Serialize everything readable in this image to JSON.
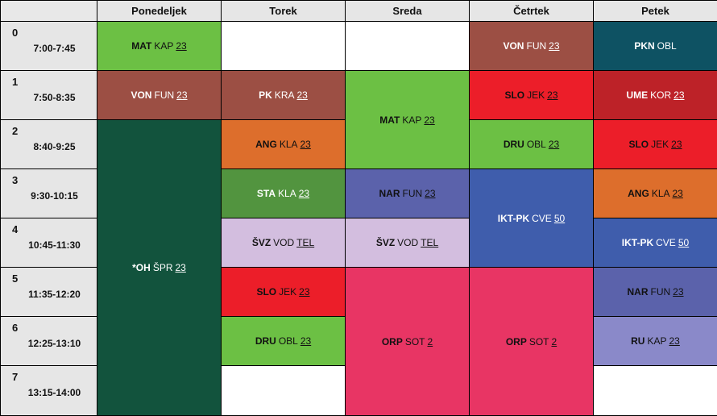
{
  "days": [
    "Ponedeljek",
    "Torek",
    "Sreda",
    "Četrtek",
    "Petek"
  ],
  "periods": [
    {
      "num": "0",
      "time": "7:00-7:45"
    },
    {
      "num": "1",
      "time": "7:50-8:35"
    },
    {
      "num": "2",
      "time": "8:40-9:25"
    },
    {
      "num": "3",
      "time": "9:30-10:15"
    },
    {
      "num": "4",
      "time": "10:45-11:30"
    },
    {
      "num": "5",
      "time": "11:35-12:20"
    },
    {
      "num": "6",
      "time": "12:25-13:10"
    },
    {
      "num": "7",
      "time": "13:15-14:00"
    }
  ],
  "lessons": [
    {
      "day": 0,
      "period": 0,
      "span": 1,
      "subject": "MAT",
      "teacher": "KAP",
      "room": "23",
      "color": "#6cc044",
      "text": "dark"
    },
    {
      "day": 0,
      "period": 1,
      "span": 1,
      "subject": "VON",
      "teacher": "FUN",
      "room": "23",
      "color": "#9c4f44",
      "text": "light"
    },
    {
      "day": 0,
      "period": 2,
      "span": 6,
      "subject": "*OH",
      "teacher": "ŠPR",
      "room": "23",
      "color": "#12533d",
      "text": "light"
    },
    {
      "day": 1,
      "period": 1,
      "span": 1,
      "subject": "PK",
      "teacher": "KRA",
      "room": "23",
      "color": "#9c4f44",
      "text": "light"
    },
    {
      "day": 1,
      "period": 2,
      "span": 1,
      "subject": "ANG",
      "teacher": "KLA",
      "room": "23",
      "color": "#dd6e2c",
      "text": "dark"
    },
    {
      "day": 1,
      "period": 3,
      "span": 1,
      "subject": "STA",
      "teacher": "KLA",
      "room": "23",
      "color": "#52943f",
      "text": "light"
    },
    {
      "day": 1,
      "period": 4,
      "span": 1,
      "subject": "ŠVZ",
      "teacher": "VOD",
      "room": "TEL",
      "color": "#d3bedf",
      "text": "dark"
    },
    {
      "day": 1,
      "period": 5,
      "span": 1,
      "subject": "SLO",
      "teacher": "JEK",
      "room": "23",
      "color": "#ec1e29",
      "text": "dark"
    },
    {
      "day": 1,
      "period": 6,
      "span": 1,
      "subject": "DRU",
      "teacher": "OBL",
      "room": "23",
      "color": "#6cc044",
      "text": "dark"
    },
    {
      "day": 2,
      "period": 1,
      "span": 2,
      "subject": "MAT",
      "teacher": "KAP",
      "room": "23",
      "color": "#6cc044",
      "text": "dark"
    },
    {
      "day": 2,
      "period": 3,
      "span": 1,
      "subject": "NAR",
      "teacher": "FUN",
      "room": "23",
      "color": "#5b62ab",
      "text": "dark"
    },
    {
      "day": 2,
      "period": 4,
      "span": 1,
      "subject": "ŠVZ",
      "teacher": "VOD",
      "room": "TEL",
      "color": "#d3bedf",
      "text": "dark"
    },
    {
      "day": 2,
      "period": 5,
      "span": 3,
      "subject": "ORP",
      "teacher": "SOT",
      "room": "2",
      "color": "#e83564",
      "text": "dark"
    },
    {
      "day": 3,
      "period": 0,
      "span": 1,
      "subject": "VON",
      "teacher": "FUN",
      "room": "23",
      "color": "#9c4f44",
      "text": "light"
    },
    {
      "day": 3,
      "period": 1,
      "span": 1,
      "subject": "SLO",
      "teacher": "JEK",
      "room": "23",
      "color": "#ec1e29",
      "text": "dark"
    },
    {
      "day": 3,
      "period": 2,
      "span": 1,
      "subject": "DRU",
      "teacher": "OBL",
      "room": "23",
      "color": "#6cc044",
      "text": "dark"
    },
    {
      "day": 3,
      "period": 3,
      "span": 2,
      "subject": "IKT-PK",
      "teacher": "CVE",
      "room": "50",
      "color": "#3f5dac",
      "text": "light"
    },
    {
      "day": 3,
      "period": 5,
      "span": 3,
      "subject": "ORP",
      "teacher": "SOT",
      "room": "2",
      "color": "#e83564",
      "text": "dark"
    },
    {
      "day": 4,
      "period": 0,
      "span": 1,
      "subject": "PKN",
      "teacher": "OBL",
      "room": "",
      "color": "#0e5263",
      "text": "light"
    },
    {
      "day": 4,
      "period": 1,
      "span": 1,
      "subject": "UME",
      "teacher": "KOR",
      "room": "23",
      "color": "#bd2228",
      "text": "light"
    },
    {
      "day": 4,
      "period": 2,
      "span": 1,
      "subject": "SLO",
      "teacher": "JEK",
      "room": "23",
      "color": "#ec1e29",
      "text": "dark"
    },
    {
      "day": 4,
      "period": 3,
      "span": 1,
      "subject": "ANG",
      "teacher": "KLA",
      "room": "23",
      "color": "#dd6e2c",
      "text": "dark"
    },
    {
      "day": 4,
      "period": 4,
      "span": 1,
      "subject": "IKT-PK",
      "teacher": "CVE",
      "room": "50",
      "color": "#3f5dac",
      "text": "light"
    },
    {
      "day": 4,
      "period": 5,
      "span": 1,
      "subject": "NAR",
      "teacher": "FUN",
      "room": "23",
      "color": "#5b62ab",
      "text": "dark"
    },
    {
      "day": 4,
      "period": 6,
      "span": 1,
      "subject": "RU",
      "teacher": "KAP",
      "room": "23",
      "color": "#8a89c9",
      "text": "dark"
    }
  ]
}
